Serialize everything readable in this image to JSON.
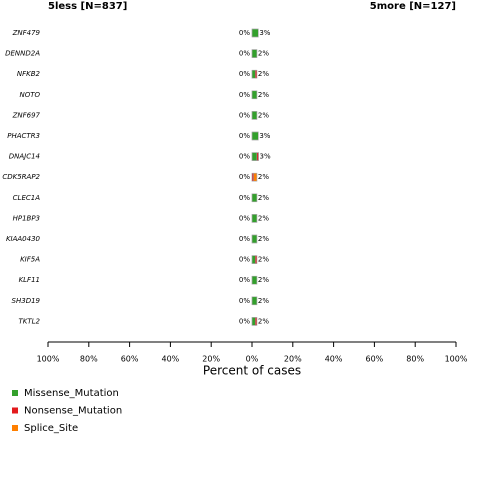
{
  "chart_data": {
    "type": "cobar",
    "categories": [
      "ZNF479",
      "DENND2A",
      "NFKB2",
      "NOTO",
      "ZNF697",
      "PHACTR3",
      "DNAJC14",
      "CDK5RAP2",
      "CLEC1A",
      "HP1BP3",
      "KIAA0430",
      "KIF5A",
      "KLF11",
      "SH3D19",
      "TKTL2"
    ],
    "xlabel": "Percent of cases",
    "groups": [
      {
        "title": "5less [N=837]",
        "side": "left",
        "values": [
          0,
          0,
          0,
          0,
          0,
          0,
          0,
          0,
          0,
          0,
          0,
          0,
          0,
          0,
          0
        ],
        "value_labels": [
          "0%",
          "0%",
          "0%",
          "0%",
          "0%",
          "0%",
          "0%",
          "0%",
          "0%",
          "0%",
          "0%",
          "0%",
          "0%",
          "0%",
          "0%"
        ],
        "xlim": [
          0,
          100
        ],
        "xticks": [
          {
            "value": 100,
            "label": "100%"
          },
          {
            "value": 80,
            "label": "80%"
          },
          {
            "value": 60,
            "label": "60%"
          },
          {
            "value": 40,
            "label": "40%"
          },
          {
            "value": 20,
            "label": "20%"
          },
          {
            "value": 0,
            "label": "0%"
          }
        ]
      },
      {
        "title": "5more [N=127]",
        "side": "right",
        "values": [
          3.1,
          2.4,
          2.4,
          2.4,
          2.4,
          3.1,
          3.2,
          2.4,
          2.4,
          2.4,
          2.4,
          2.4,
          2.4,
          2.4,
          2.4
        ],
        "value_labels": [
          "3%",
          "2%",
          "2%",
          "2%",
          "2%",
          "3%",
          "3%",
          "2%",
          "2%",
          "2%",
          "2%",
          "2%",
          "2%",
          "2%",
          "2%"
        ],
        "xlim": [
          0,
          100
        ],
        "xticks": [
          {
            "value": 20,
            "label": "20%"
          },
          {
            "value": 40,
            "label": "40%"
          },
          {
            "value": 60,
            "label": "60%"
          },
          {
            "value": 80,
            "label": "80%"
          },
          {
            "value": 100,
            "label": "100%"
          }
        ]
      }
    ],
    "series": [
      {
        "name": "Missense_Mutation",
        "color": "#33a02c",
        "values": [
          3.1,
          2.4,
          1.6,
          2.4,
          2.4,
          3.1,
          2.4,
          0,
          2.4,
          2.4,
          2.4,
          1.6,
          2.4,
          2.4,
          1.6
        ]
      },
      {
        "name": "Nonsense_Mutation",
        "color": "#e31a1c",
        "values": [
          0,
          0,
          0.8,
          0,
          0,
          0,
          0.8,
          0.8,
          0,
          0,
          0,
          0.8,
          0,
          0,
          0.8
        ]
      },
      {
        "name": "Splice_Site",
        "color": "#ff7f00",
        "values": [
          0,
          0,
          0,
          0,
          0,
          0,
          0,
          1.6,
          0,
          0,
          0,
          0,
          0,
          0,
          0
        ]
      }
    ]
  }
}
